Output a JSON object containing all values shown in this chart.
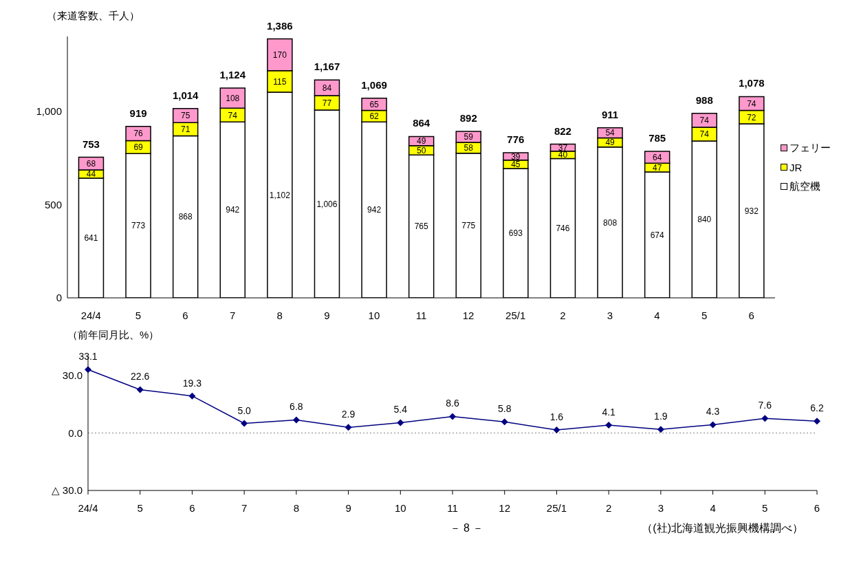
{
  "chart_data": [
    {
      "type": "bar",
      "stacked": true,
      "ylabel": "（来道客数、千人）",
      "categories": [
        "24/4",
        "5",
        "6",
        "7",
        "8",
        "9",
        "10",
        "11",
        "12",
        "25/1",
        "2",
        "3",
        "4",
        "5",
        "6"
      ],
      "series": [
        {
          "name": "航空機",
          "color": "#ffffff",
          "values": [
            641,
            773,
            868,
            942,
            1102,
            1006,
            942,
            765,
            775,
            693,
            746,
            808,
            674,
            840,
            932
          ],
          "value_labels": [
            "641",
            "773",
            "868",
            "942",
            "1,102",
            "1,006",
            "942",
            "765",
            "775",
            "693",
            "746",
            "808",
            "674",
            "840",
            "932"
          ]
        },
        {
          "name": "JR",
          "color": "#ffff00",
          "values": [
            44,
            69,
            71,
            74,
            115,
            77,
            62,
            50,
            58,
            45,
            40,
            49,
            47,
            74,
            72
          ]
        },
        {
          "name": "フェリー",
          "color": "#ff99cc",
          "values": [
            68,
            76,
            75,
            108,
            170,
            84,
            65,
            49,
            59,
            39,
            37,
            54,
            64,
            74,
            74
          ]
        }
      ],
      "totals": [
        "753",
        "919",
        "1,014",
        "1,124",
        "1,386",
        "1,167",
        "1,069",
        "864",
        "892",
        "776",
        "822",
        "911",
        "785",
        "988",
        "1,078"
      ],
      "data_labels": true,
      "ylim": [
        0,
        1400
      ],
      "yticks": [
        0,
        500,
        {
          "value": 1000,
          "label": "1,000"
        }
      ],
      "legend": "right"
    },
    {
      "type": "line",
      "ylabel": "（前年同月比、%）",
      "categories": [
        "24/4",
        "5",
        "6",
        "7",
        "8",
        "9",
        "10",
        "11",
        "12",
        "25/1",
        "2",
        "3",
        "4",
        "5",
        "6"
      ],
      "series": [
        {
          "color": "#000080",
          "values": [
            33.1,
            22.6,
            19.3,
            5.0,
            6.8,
            2.9,
            5.4,
            8.6,
            5.8,
            1.6,
            4.1,
            1.9,
            4.3,
            7.6,
            6.2
          ],
          "value_labels": [
            "33.1",
            "22.6",
            "19.3",
            "5.0",
            "6.8",
            "2.9",
            "5.4",
            "8.6",
            "5.8",
            "1.6",
            "4.1",
            "1.9",
            "4.3",
            "7.6",
            "6.2"
          ]
        }
      ],
      "ylim": [
        -30,
        40
      ],
      "yticks": [
        {
          "value": 30,
          "label": "30.0"
        },
        {
          "value": 0,
          "label": "0.0"
        },
        {
          "value": -30,
          "label": "△ 30.0"
        }
      ],
      "marker": "diamond",
      "line_style": "solid",
      "ref_lines": [
        {
          "axis": "y",
          "value": 0,
          "line_style": "dotted",
          "color": "#808080"
        }
      ],
      "annotations": [
        "－ 8 －",
        "（(社)北海道観光振興機構調べ）"
      ]
    }
  ]
}
